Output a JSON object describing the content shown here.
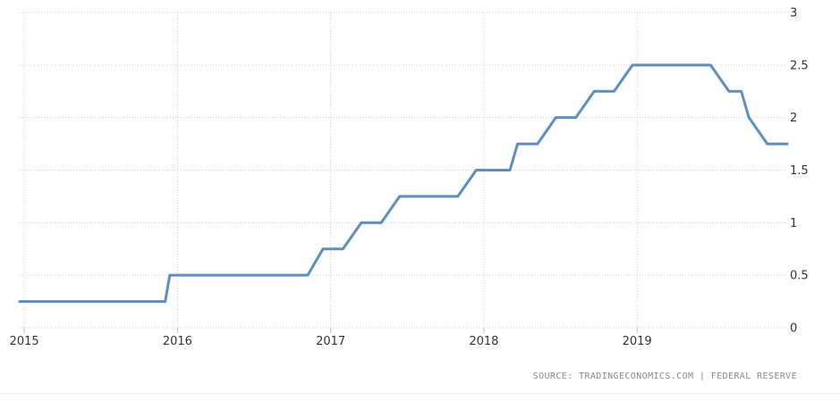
{
  "chart_data": {
    "type": "line",
    "title": "",
    "xlabel": "",
    "ylabel": "",
    "xlim": [
      2014.97,
      2019.98
    ],
    "ylim": [
      0,
      3
    ],
    "y_ticks": [
      "0",
      "0.5",
      "1",
      "1.5",
      "2",
      "2.5",
      "3"
    ],
    "x_ticks": [
      "2015",
      "2016",
      "2017",
      "2018",
      "2019"
    ],
    "y_axis_position": "right",
    "grid": "dotted",
    "legend": "none",
    "series_color": "#5b8fc2",
    "series": [
      {
        "x": [
          2014.97,
          2015.92,
          2015.95,
          2016.85,
          2016.95,
          2017.08,
          2017.2,
          2017.33,
          2017.45,
          2017.83,
          2017.95,
          2018.17,
          2018.22,
          2018.35,
          2018.47,
          2018.6,
          2018.72,
          2018.85,
          2018.97,
          2019.48,
          2019.6,
          2019.68,
          2019.73,
          2019.85,
          2019.98
        ],
        "y": [
          0.25,
          0.25,
          0.5,
          0.5,
          0.75,
          0.75,
          1.0,
          1.0,
          1.25,
          1.25,
          1.5,
          1.5,
          1.75,
          1.75,
          2.0,
          2.0,
          2.25,
          2.25,
          2.5,
          2.5,
          2.25,
          2.25,
          2.0,
          1.75,
          1.75
        ]
      }
    ]
  },
  "source": {
    "text": "SOURCE: TRADINGECONOMICS.COM | FEDERAL RESERVE"
  }
}
